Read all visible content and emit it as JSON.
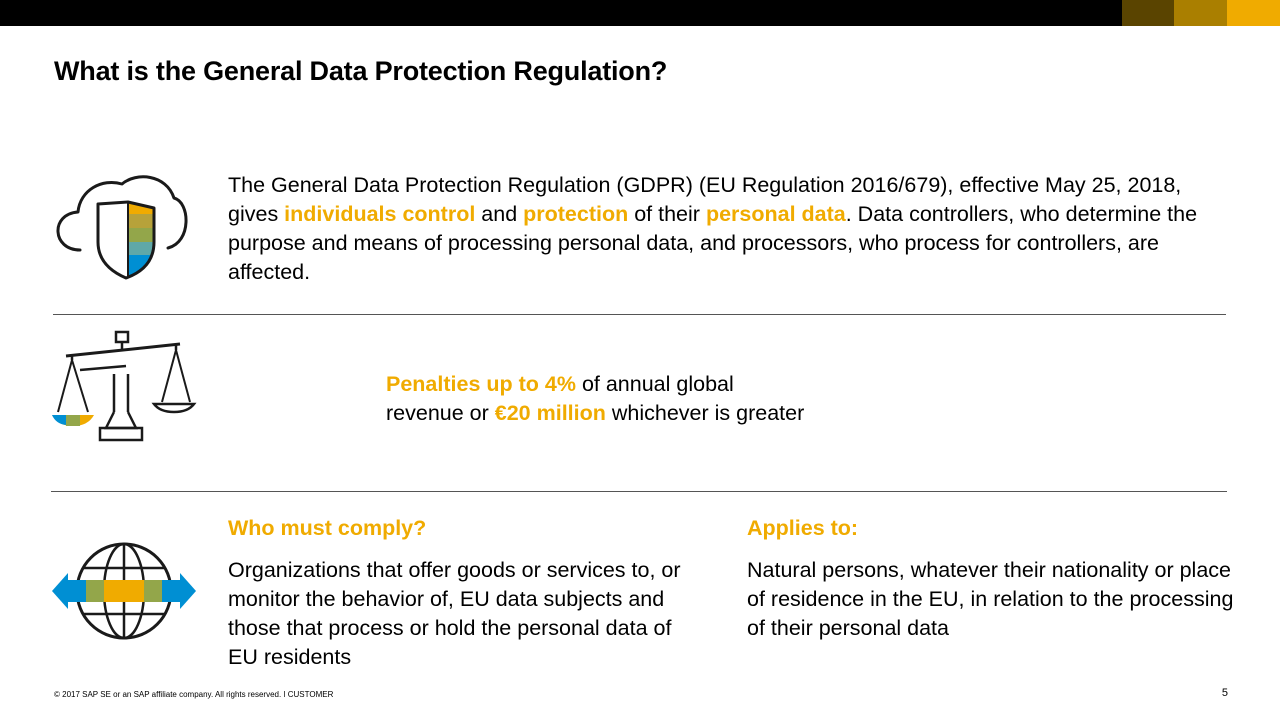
{
  "slide": {
    "title": "What is the General Data Protection Regulation?",
    "page_number": "5"
  },
  "intro": {
    "text_1": "The General Data Protection Regulation (GDPR) (EU Regulation 2016/679), effective May 25, 2018, gives ",
    "highlight_1": "individuals control",
    "text_2": " and ",
    "highlight_2": "protection",
    "text_3": " of their ",
    "highlight_3": "personal data",
    "text_4": ". Data controllers, who determine the purpose and means of processing personal data, and processors, who process for controllers, are affected."
  },
  "penalties": {
    "highlight_1": "Penalties up to 4%",
    "text_1": " of annual global",
    "text_2": "revenue or ",
    "highlight_2": "€20 million",
    "text_3": " whichever is greater"
  },
  "who_must_comply": {
    "heading": "Who must comply?",
    "body": "Organizations that offer goods or services to, or monitor the behavior of, EU data subjects and those that process or hold the personal data of EU residents"
  },
  "applies_to": {
    "heading": "Applies to:",
    "body": "Natural persons, whatever their nationality or place of residence in the EU, in relation to the processing of their personal data"
  },
  "footer": {
    "copyright": "© 2017 SAP SE or an SAP affiliate company. All rights reserved.  ǀ  CUSTOMER"
  },
  "icons": {
    "intro": "cloud-shield-icon",
    "penalties": "scales-icon",
    "compliance": "globe-arrows-icon"
  },
  "colors": {
    "accent": "#F0AB00",
    "bar_dark": "#000000",
    "bar_gold_1": "#5A4400",
    "bar_gold_2": "#AA7F00",
    "bar_gold_3": "#F0AB00",
    "icon_blue": "#008FD3",
    "icon_green": "#93A64A"
  }
}
